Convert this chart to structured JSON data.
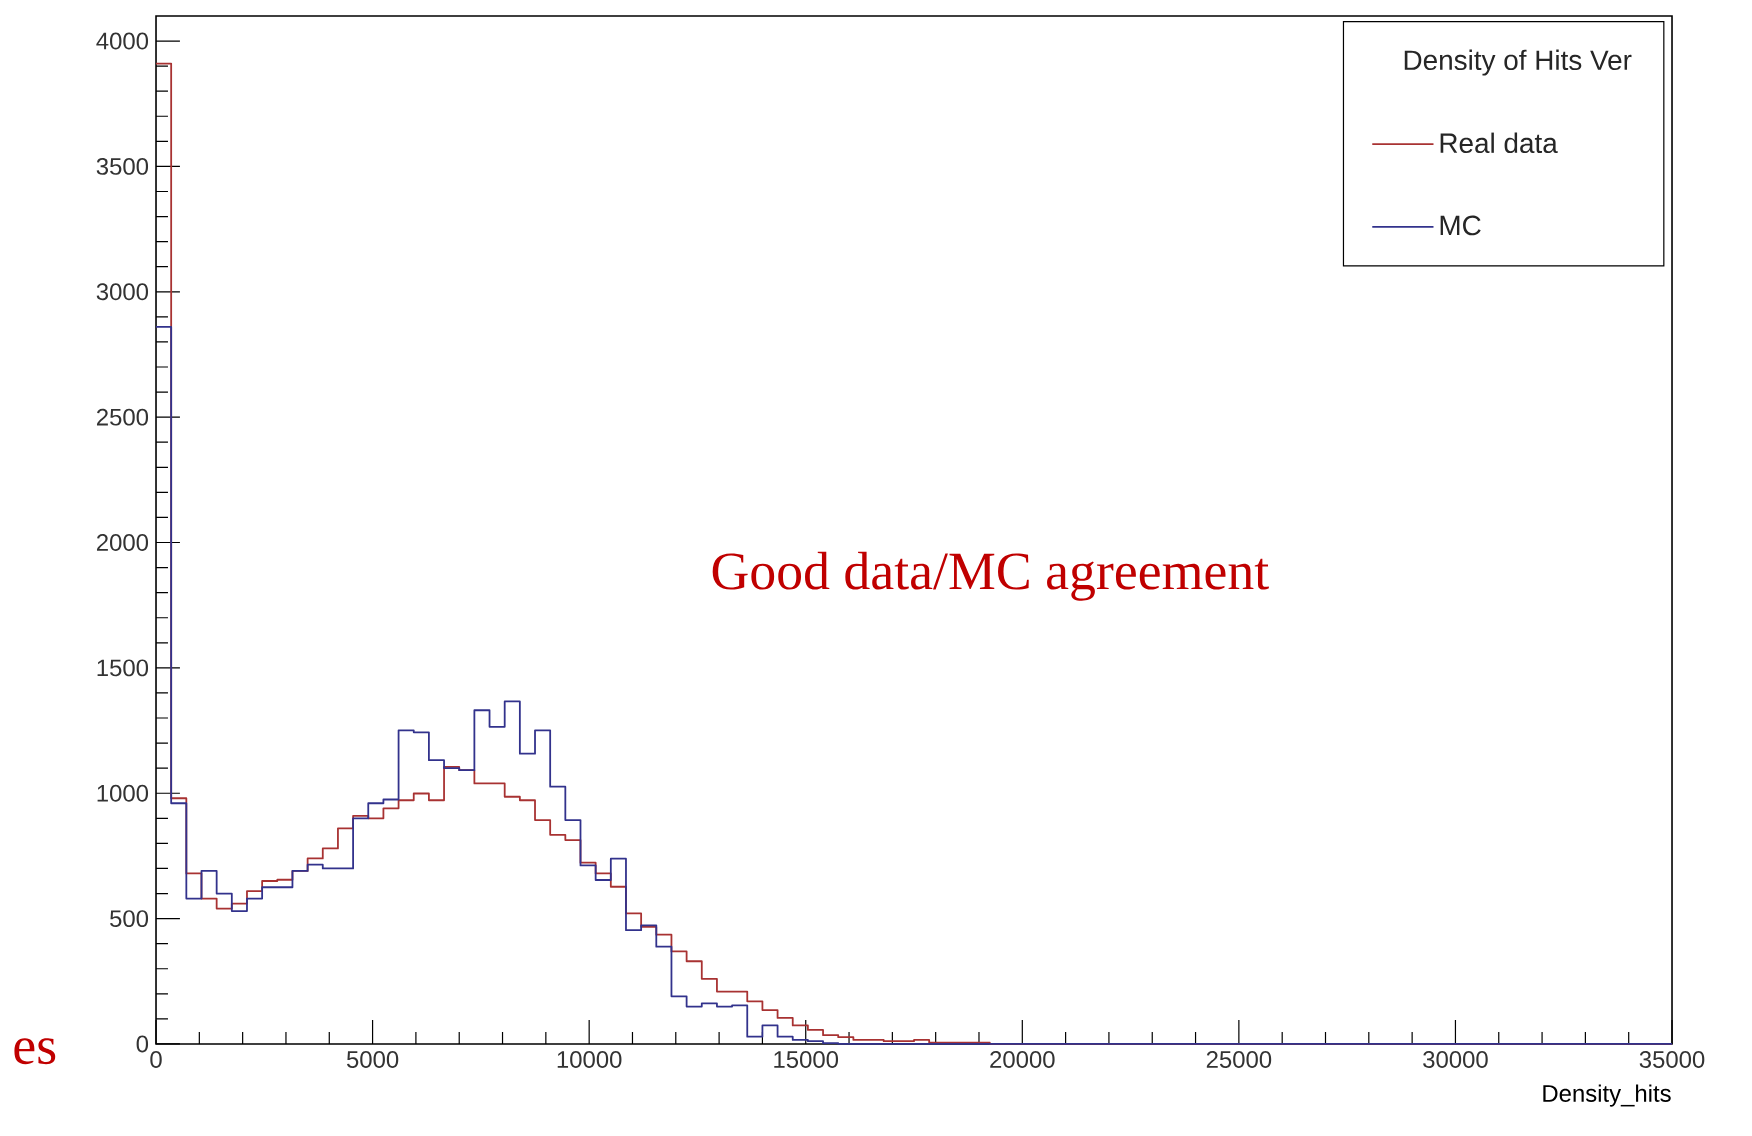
{
  "chart_data": {
    "type": "histogram",
    "xlabel": "Density_hits",
    "legend_title": "Density of Hits Ver",
    "annotations": [
      "Good data/MC agreement",
      "es"
    ],
    "bins": [
      0,
      350,
      700,
      1050,
      1400,
      1750,
      2100,
      2450,
      2800,
      3150,
      3500,
      3850,
      4200,
      4550,
      4900,
      5250,
      5600,
      5950,
      6300,
      6650,
      7000,
      7350,
      7700,
      8050,
      8400,
      8750,
      9100,
      9450,
      9800,
      10150,
      10500,
      10850,
      11200,
      11550,
      11900,
      12250,
      12600,
      12950,
      13300,
      13650,
      14000,
      14350,
      14700,
      15050,
      15400,
      15750,
      16100,
      16450,
      16800,
      17150,
      17500,
      17850,
      18200,
      18550,
      18900,
      19250,
      19600,
      19950,
      20300,
      20650,
      21000,
      21350,
      21700,
      22050,
      22400,
      22750,
      23100,
      23450,
      23800,
      24150,
      24500,
      24850,
      25200,
      25550,
      25900,
      26250,
      26600,
      26950,
      27300,
      27650,
      28000,
      28350,
      28700,
      29050,
      29400,
      29750,
      30100,
      30450,
      30800,
      31150,
      31500,
      31850,
      32200,
      32550,
      32900,
      33250,
      33600,
      33950,
      34300,
      34650,
      35000
    ],
    "series": [
      {
        "name": "Real data",
        "color": "#a83232",
        "values": [
          3910,
          980,
          680,
          580,
          540,
          560,
          610,
          650,
          655,
          690,
          740,
          780,
          860,
          910,
          900,
          940,
          972,
          999,
          972,
          1105,
          1092,
          1039,
          1039,
          986,
          972,
          893,
          834,
          813,
          723,
          680,
          627,
          521,
          467,
          436,
          369,
          330,
          260,
          209,
          209,
          170,
          135,
          104,
          74,
          56,
          35,
          27,
          16,
          16,
          11,
          11,
          16,
          5,
          5,
          5,
          5,
          0,
          0,
          0,
          0,
          0,
          0,
          0,
          0,
          0,
          0,
          0,
          0,
          0,
          0,
          0,
          0,
          0,
          0,
          0,
          0,
          0,
          0,
          0,
          0,
          0,
          0,
          0,
          0,
          0,
          0,
          0,
          0,
          0,
          0,
          0,
          0,
          0,
          0,
          0,
          0,
          0,
          0,
          0,
          0,
          0
        ]
      },
      {
        "name": "MC",
        "color": "#32328c",
        "values": [
          2860,
          960,
          580,
          690,
          600,
          530,
          580,
          625,
          625,
          690,
          715,
          700,
          700,
          900,
          960,
          975,
          1251,
          1243,
          1132,
          1100,
          1092,
          1331,
          1265,
          1366,
          1158,
          1251,
          1026,
          893,
          712,
          654,
          739,
          454,
          473,
          388,
          190,
          149,
          162,
          149,
          154,
          29,
          74,
          29,
          16,
          11,
          3,
          0,
          0,
          0,
          0,
          0,
          0,
          0,
          0,
          0,
          0,
          0,
          0,
          0,
          0,
          0,
          0,
          0,
          0,
          0,
          0,
          0,
          0,
          0,
          0,
          0,
          0,
          0,
          0,
          0,
          0,
          0,
          0,
          0,
          0,
          0,
          0,
          0,
          0,
          0,
          0,
          0,
          0,
          0,
          0,
          0,
          0,
          0,
          0,
          0,
          0,
          0,
          0,
          0,
          0,
          0
        ]
      }
    ],
    "xlim": [
      0,
      35000
    ],
    "ylim": [
      0,
      4100
    ],
    "xticks": [
      0,
      5000,
      10000,
      15000,
      20000,
      25000,
      30000,
      35000
    ],
    "yticks": [
      0,
      500,
      1000,
      1500,
      2000,
      2500,
      3000,
      3500,
      4000
    ],
    "legend": "top right"
  }
}
